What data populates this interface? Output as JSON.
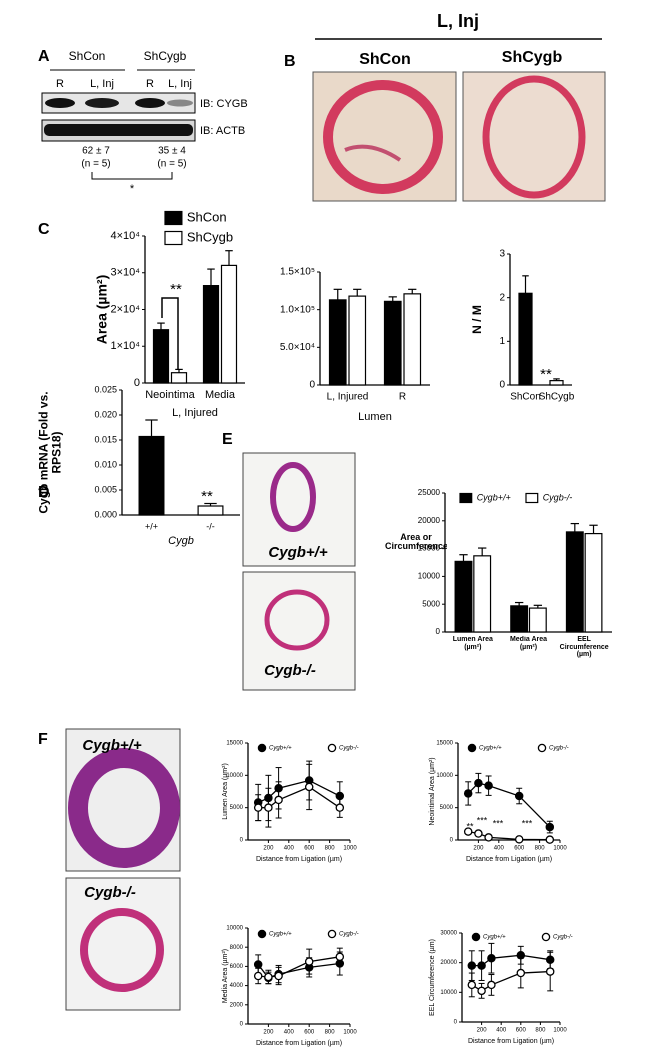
{
  "panel_labels": [
    "A",
    "B",
    "C",
    "D",
    "E",
    "F"
  ],
  "blot": {
    "groups": [
      "ShCon",
      "ShCygb"
    ],
    "lanes": [
      "R",
      "L, Inj",
      "R",
      "L, Inj"
    ],
    "antibodies": [
      "IB: CYGB",
      "IB: ACTB"
    ],
    "quant": [
      {
        "value": "62 ± 7",
        "n": "(n = 5)"
      },
      {
        "value": "35 ± 4",
        "n": "(n = 5)"
      }
    ],
    "significance": "*"
  },
  "histology_b": {
    "title": "L, Inj",
    "labels": [
      "ShCon",
      "ShCygb"
    ]
  },
  "histology_e": {
    "labels": [
      "Cygb+/+",
      "Cygb-/-"
    ]
  },
  "histology_f": {
    "labels": [
      "Cygb+/+",
      "Cygb-/-"
    ]
  },
  "chart_data": [
    {
      "type": "bar",
      "y_label": "Area (µm²)",
      "x_label": "L, Injured",
      "categories": [
        "Neointima",
        "Media"
      ],
      "series": [
        {
          "name": "ShCon",
          "color": "#000000",
          "values": [
            14500,
            26500
          ],
          "errors": [
            1800,
            4500
          ]
        },
        {
          "name": "ShCygb",
          "color": "#ffffff",
          "values": [
            2800,
            32000
          ],
          "errors": [
            900,
            4000
          ]
        }
      ],
      "ylim": [
        0,
        40000
      ],
      "yticks": [
        0,
        {
          "value": 10000,
          "label": "1×10⁴"
        },
        {
          "value": 20000,
          "label": "2×10⁴"
        },
        {
          "value": 30000,
          "label": "3×10⁴"
        },
        {
          "value": 40000,
          "label": "4×10⁴"
        }
      ],
      "annotations": [
        "**"
      ]
    },
    {
      "type": "bar",
      "x_label": "Lumen",
      "categories": [
        "L, Injured",
        "R"
      ],
      "series": [
        {
          "name": "ShCon",
          "color": "#000000",
          "values": [
            113000,
            111000
          ],
          "errors": [
            14000,
            6000
          ]
        },
        {
          "name": "ShCygb",
          "color": "#ffffff",
          "values": [
            118000,
            121000
          ],
          "errors": [
            9000,
            6000
          ]
        }
      ],
      "ylim": [
        0,
        150000
      ],
      "yticks": [
        0,
        {
          "value": 50000,
          "label": "5.0×10⁴"
        },
        {
          "value": 100000,
          "label": "1.0×10⁵"
        },
        {
          "value": 150000,
          "label": "1.5×10⁵"
        }
      ]
    },
    {
      "type": "bar",
      "y_label": "N / M",
      "categories": [
        "ShCon",
        "ShCygb"
      ],
      "values": [
        2.1,
        0.1
      ],
      "errors": [
        0.4,
        0.04
      ],
      "colors": [
        "#000000",
        "#ffffff"
      ],
      "ylim": [
        0,
        3
      ],
      "yticks": [
        0,
        1,
        2,
        3
      ],
      "annotations": [
        "**"
      ]
    },
    {
      "type": "bar",
      "y_label": "Cygb mRNA (Fold vs. RPS18)",
      "x_label": "Cygb",
      "categories": [
        "+/+",
        "-/-"
      ],
      "values": [
        0.0157,
        0.0018
      ],
      "errors": [
        0.0033,
        0.0005
      ],
      "colors": [
        "#000000",
        "#ffffff"
      ],
      "ylim": [
        0,
        0.025
      ],
      "yticks": [
        {
          "value": 0,
          "label": "0.000"
        },
        0.005,
        {
          "value": 0.01,
          "label": "0.010"
        },
        0.015,
        {
          "value": 0.02,
          "label": "0.020"
        },
        0.025
      ],
      "annotations": [
        "**"
      ]
    },
    {
      "type": "bar",
      "y_label": "Area or Circumference",
      "categories": [
        "Lumen Area (µm²)",
        "Media Area (µm²)",
        "EEL Circumference (µm)"
      ],
      "series": [
        {
          "name": "Cygb+/+",
          "color": "#000000",
          "values": [
            12700,
            4700,
            18000
          ],
          "errors": [
            1200,
            600,
            1500
          ]
        },
        {
          "name": "Cygb-/-",
          "color": "#ffffff",
          "values": [
            13700,
            4300,
            17700
          ],
          "errors": [
            1400,
            500,
            1500
          ]
        }
      ],
      "ylim": [
        0,
        25000
      ],
      "yticks": [
        0,
        5000,
        10000,
        15000,
        20000,
        25000
      ]
    },
    {
      "type": "line",
      "y_label": "Lumen Area (µm²)",
      "x_label": "Distance from Ligation (µm)",
      "x": [
        100,
        200,
        300,
        600,
        900
      ],
      "series": [
        {
          "name": "Cygb+/+",
          "color": "#000000",
          "marker_fill": "#000000",
          "values": [
            5800,
            6500,
            8000,
            9200,
            6800
          ],
          "errors": [
            2800,
            3500,
            3200,
            3000,
            2200
          ]
        },
        {
          "name": "Cygb-/-",
          "color": "#000000",
          "marker_fill": "#ffffff",
          "values": [
            5000,
            5000,
            6200,
            8200,
            5000
          ],
          "errors": [
            2000,
            3000,
            2800,
            3500,
            1500
          ]
        }
      ],
      "xlim": [
        0,
        1000
      ],
      "xticks": [
        200,
        400,
        600,
        800,
        1000
      ],
      "ylim": [
        0,
        15000
      ],
      "yticks": [
        0,
        5000,
        10000,
        15000
      ]
    },
    {
      "type": "line",
      "y_label": "Neointimal Area (µm²)",
      "x_label": "Distance from Ligation (µm)",
      "x": [
        100,
        200,
        300,
        600,
        900
      ],
      "series": [
        {
          "name": "Cygb+/+",
          "color": "#000000",
          "marker_fill": "#000000",
          "values": [
            7200,
            8800,
            8400,
            6800,
            2000
          ],
          "errors": [
            1800,
            1500,
            1500,
            1200,
            900
          ]
        },
        {
          "name": "Cygb-/-",
          "color": "#000000",
          "marker_fill": "#ffffff",
          "values": [
            1300,
            1000,
            400,
            100,
            50
          ],
          "errors": [
            300,
            300,
            200,
            50,
            30
          ]
        }
      ],
      "xlim": [
        0,
        1000
      ],
      "xticks": [
        200,
        400,
        600,
        800,
        1000
      ],
      "ylim": [
        0,
        15000
      ],
      "yticks": [
        0,
        5000,
        10000,
        15000
      ],
      "annotations": [
        "**",
        "***",
        "***",
        "***"
      ]
    },
    {
      "type": "line",
      "y_label": "Media Area (µm²)",
      "x_label": "Distance from Ligation (µm)",
      "x": [
        100,
        200,
        300,
        600,
        900
      ],
      "series": [
        {
          "name": "Cygb+/+",
          "color": "#000000",
          "marker_fill": "#000000",
          "values": [
            6200,
            4800,
            5200,
            5900,
            6300
          ],
          "errors": [
            1000,
            600,
            900,
            1000,
            1200
          ]
        },
        {
          "name": "Cygb-/-",
          "color": "#000000",
          "marker_fill": "#ffffff",
          "values": [
            5000,
            4900,
            5000,
            6500,
            7000
          ],
          "errors": [
            800,
            700,
            900,
            1300,
            900
          ]
        }
      ],
      "xlim": [
        0,
        1000
      ],
      "xticks": [
        200,
        400,
        600,
        800,
        1000
      ],
      "ylim": [
        0,
        10000
      ],
      "yticks": [
        0,
        2000,
        4000,
        6000,
        8000,
        10000
      ]
    },
    {
      "type": "line",
      "y_label": "EEL Circumference (µm)",
      "x_label": "Distance from Ligation (µm)",
      "x": [
        100,
        200,
        300,
        600,
        900
      ],
      "series": [
        {
          "name": "Cygb+/+",
          "color": "#000000",
          "marker_fill": "#000000",
          "values": [
            19000,
            19000,
            21500,
            22500,
            21000
          ],
          "errors": [
            5000,
            5000,
            5000,
            3000,
            3000
          ]
        },
        {
          "name": "Cygb-/-",
          "color": "#000000",
          "marker_fill": "#ffffff",
          "values": [
            12500,
            10500,
            12500,
            16500,
            17000
          ],
          "errors": [
            4000,
            2500,
            3500,
            5000,
            6500
          ]
        }
      ],
      "xlim": [
        0,
        1000
      ],
      "xticks": [
        200,
        400,
        600,
        800,
        1000
      ],
      "ylim": [
        0,
        30000
      ],
      "yticks": [
        0,
        10000,
        20000,
        30000
      ]
    }
  ]
}
